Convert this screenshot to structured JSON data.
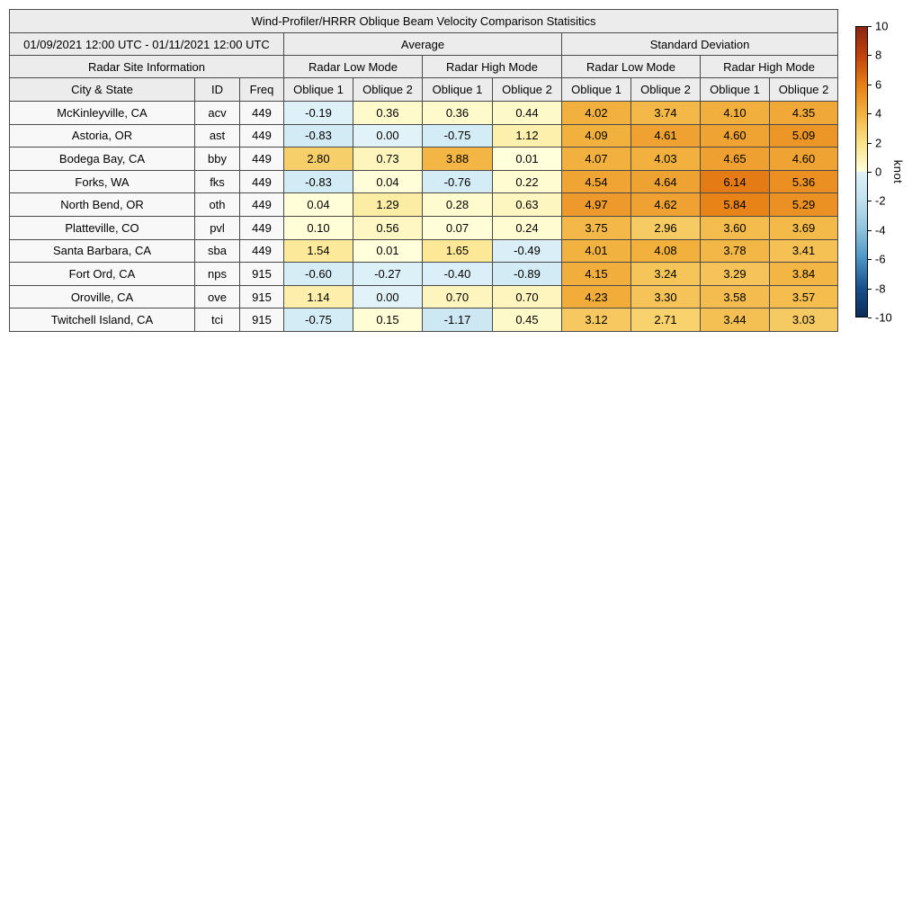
{
  "title": "Wind-Profiler/HRRR Oblique Beam Velocity Comparison Statisitics",
  "header": {
    "date_range": "01/09/2021 12:00 UTC - 01/11/2021 12:00 UTC",
    "site_info": "Radar Site Information",
    "average": "Average",
    "std_dev": "Standard Deviation",
    "low_mode": "Radar Low Mode",
    "high_mode": "Radar High Mode",
    "oblique1": "Oblique 1",
    "oblique2": "Oblique 2",
    "city_state": "City & State",
    "id": "ID",
    "freq": "Freq"
  },
  "colorbar": {
    "label": "knot",
    "min": -10,
    "max": 10,
    "ticks": [
      "10",
      "8",
      "6",
      "4",
      "2",
      "0",
      "-2",
      "-4",
      "-6",
      "-8",
      "-10"
    ],
    "positive_stops": [
      {
        "v": 0,
        "c": "#ffffdb"
      },
      {
        "v": 2,
        "c": "#fbe387"
      },
      {
        "v": 4,
        "c": "#f2b23f"
      },
      {
        "v": 6,
        "c": "#e77f15"
      },
      {
        "v": 8,
        "c": "#c2420a"
      },
      {
        "v": 10,
        "c": "#8b2511"
      }
    ],
    "negative_stops": [
      {
        "v": -10,
        "c": "#0c2c5a"
      },
      {
        "v": -8,
        "c": "#17508e"
      },
      {
        "v": -6,
        "c": "#4b94c4"
      },
      {
        "v": -4,
        "c": "#8ec3dd"
      },
      {
        "v": -2,
        "c": "#bfe0ee"
      },
      {
        "v": 0,
        "c": "#e1f3f9"
      }
    ]
  },
  "chart_data": {
    "type": "heatmap",
    "title": "Wind-Profiler/HRRR Oblique Beam Velocity Comparison Statisitics",
    "date_range": "01/09/2021 12:00 UTC - 01/11/2021 12:00 UTC",
    "column_groups": [
      "Average",
      "Standard Deviation"
    ],
    "mode_groups": [
      "Radar Low Mode",
      "Radar High Mode"
    ],
    "value_columns": [
      "Oblique 1",
      "Oblique 2"
    ],
    "site_columns": [
      "City & State",
      "ID",
      "Freq"
    ],
    "colorbar_label": "knot",
    "color_range": [
      -10,
      10
    ],
    "rows": [
      {
        "city": "McKinleyville, CA",
        "id": "acv",
        "freq": "449",
        "values": [
          "-0.19",
          "0.36",
          "0.36",
          "0.44",
          "4.02",
          "3.74",
          "4.10",
          "4.35"
        ]
      },
      {
        "city": "Astoria, OR",
        "id": "ast",
        "freq": "449",
        "values": [
          "-0.83",
          "0.00",
          "-0.75",
          "1.12",
          "4.09",
          "4.61",
          "4.60",
          "5.09"
        ]
      },
      {
        "city": "Bodega Bay, CA",
        "id": "bby",
        "freq": "449",
        "values": [
          "2.80",
          "0.73",
          "3.88",
          "0.01",
          "4.07",
          "4.03",
          "4.65",
          "4.60"
        ]
      },
      {
        "city": "Forks, WA",
        "id": "fks",
        "freq": "449",
        "values": [
          "-0.83",
          "0.04",
          "-0.76",
          "0.22",
          "4.54",
          "4.64",
          "6.14",
          "5.36"
        ]
      },
      {
        "city": "North Bend, OR",
        "id": "oth",
        "freq": "449",
        "values": [
          "0.04",
          "1.29",
          "0.28",
          "0.63",
          "4.97",
          "4.62",
          "5.84",
          "5.29"
        ]
      },
      {
        "city": "Platteville, CO",
        "id": "pvl",
        "freq": "449",
        "values": [
          "0.10",
          "0.56",
          "0.07",
          "0.24",
          "3.75",
          "2.96",
          "3.60",
          "3.69"
        ]
      },
      {
        "city": "Santa Barbara, CA",
        "id": "sba",
        "freq": "449",
        "values": [
          "1.54",
          "0.01",
          "1.65",
          "-0.49",
          "4.01",
          "4.08",
          "3.78",
          "3.41"
        ]
      },
      {
        "city": "Fort Ord, CA",
        "id": "nps",
        "freq": "915",
        "values": [
          "-0.60",
          "-0.27",
          "-0.40",
          "-0.89",
          "4.15",
          "3.24",
          "3.29",
          "3.84"
        ]
      },
      {
        "city": "Oroville, CA",
        "id": "ove",
        "freq": "915",
        "values": [
          "1.14",
          "0.00",
          "0.70",
          "0.70",
          "4.23",
          "3.30",
          "3.58",
          "3.57"
        ]
      },
      {
        "city": "Twitchell Island, CA",
        "id": "tci",
        "freq": "915",
        "values": [
          "-0.75",
          "0.15",
          "-1.17",
          "0.45",
          "3.12",
          "2.71",
          "3.44",
          "3.03"
        ]
      }
    ]
  }
}
